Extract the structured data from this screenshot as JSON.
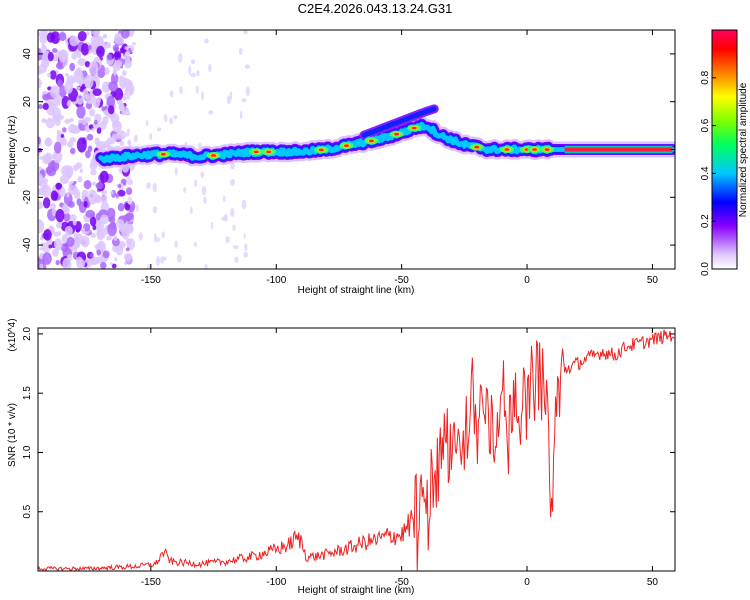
{
  "chart_data": [
    {
      "type": "heatmap",
      "title": "C2E4.2026.043.13.24.G31",
      "xlabel": "Height of straight line (km)",
      "ylabel": "Frequency (Hz)",
      "xlim": [
        -195,
        59
      ],
      "ylim": [
        -50,
        50
      ],
      "xticks": [
        -150,
        -100,
        -50,
        0,
        50
      ],
      "yticks": [
        -40,
        -20,
        0,
        20,
        40
      ],
      "colorbar": {
        "label": "Normalized spectral amplitude",
        "range": [
          0,
          1
        ],
        "ticks": [
          0.0,
          0.2,
          0.4,
          0.6,
          0.8
        ],
        "colors": [
          "#ffffff",
          "#e0c8ff",
          "#8800ff",
          "#0000ff",
          "#00c8ff",
          "#00ff60",
          "#80ff00",
          "#ffff00",
          "#ff8000",
          "#ff0000",
          "#ff0060"
        ]
      },
      "ridge": {
        "name": "dominant frequency",
        "x": [
          -170,
          -160,
          -150,
          -140,
          -130,
          -120,
          -110,
          -100,
          -90,
          -80,
          -70,
          -60,
          -50,
          -45,
          -40,
          -35,
          -30,
          -25,
          -20,
          -15,
          -10,
          -5,
          0,
          10,
          20,
          30,
          40,
          50,
          58
        ],
        "y": [
          -4,
          -3,
          -2,
          -2,
          -3,
          -2,
          -1,
          -1,
          -1,
          0,
          2,
          4,
          7,
          9,
          10,
          6,
          4,
          2,
          1,
          0,
          0,
          0,
          0,
          0,
          0,
          0,
          0,
          0,
          0
        ]
      },
      "upper_branch": {
        "x": [
          -65,
          -60,
          -55,
          -50,
          -45,
          -40,
          -37
        ],
        "y": [
          6,
          8,
          10,
          12,
          14,
          16,
          17
        ]
      },
      "noise_region_x": [
        -195,
        -160
      ]
    },
    {
      "type": "line",
      "xlabel": "Height of straight line (km)",
      "ylabel": "SNR (10 * v/v)",
      "scale_label": "(x10^4)",
      "xlim": [
        -195,
        59
      ],
      "ylim": [
        0,
        2.05
      ],
      "xticks": [
        -150,
        -100,
        -50,
        0,
        50
      ],
      "yticks": [
        0.5,
        1.0,
        1.5,
        2.0
      ],
      "color": "#ff0000",
      "series": [
        {
          "name": "SNR",
          "x": [
            -195,
            -185,
            -175,
            -165,
            -155,
            -148,
            -145,
            -142,
            -138,
            -130,
            -120,
            -110,
            -105,
            -100,
            -95,
            -92,
            -90,
            -88,
            -85,
            -80,
            -75,
            -70,
            -65,
            -60,
            -55,
            -50,
            -45,
            -42,
            -40,
            -38,
            -35,
            -33,
            -30,
            -28,
            -25,
            -22,
            -20,
            -18,
            -15,
            -12,
            -10,
            -8,
            -5,
            -3,
            0,
            3,
            5,
            7,
            9,
            10,
            11,
            13,
            15,
            20,
            25,
            30,
            35,
            40,
            45,
            50,
            55,
            59
          ],
          "y": [
            0.02,
            0.02,
            0.02,
            0.03,
            0.04,
            0.06,
            0.16,
            0.08,
            0.07,
            0.06,
            0.08,
            0.12,
            0.15,
            0.18,
            0.22,
            0.28,
            0.25,
            0.12,
            0.12,
            0.14,
            0.17,
            0.2,
            0.24,
            0.26,
            0.3,
            0.3,
            0.45,
            0.6,
            0.5,
            0.85,
            0.8,
            1.2,
            0.9,
            1.35,
            1.0,
            1.6,
            1.15,
            1.45,
            1.2,
            1.1,
            1.55,
            1.2,
            1.6,
            1.4,
            1.5,
            1.6,
            1.7,
            1.45,
            1.0,
            0.45,
            1.2,
            1.6,
            1.7,
            1.75,
            1.8,
            1.85,
            1.82,
            1.9,
            1.92,
            1.95,
            1.98,
            2.0
          ]
        }
      ]
    }
  ]
}
